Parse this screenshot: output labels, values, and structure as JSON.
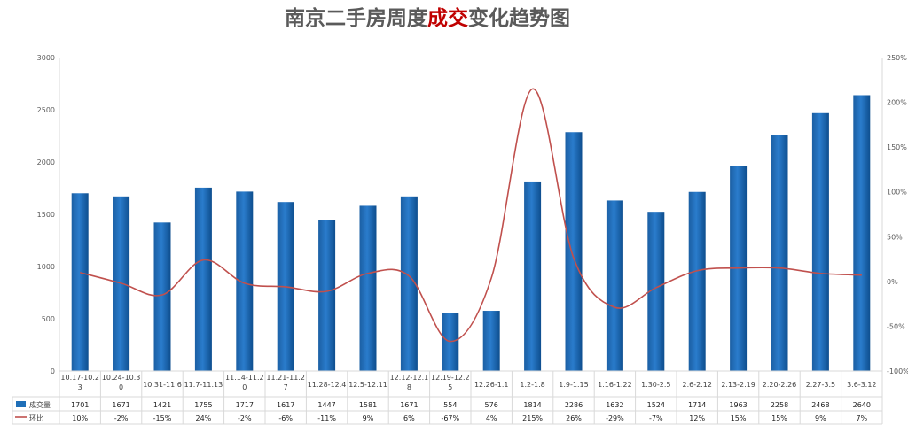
{
  "chart_data": {
    "type": "bar",
    "title_parts": [
      {
        "text": "南京二手房周度",
        "color": "#5a5a5a"
      },
      {
        "text": "成交",
        "color": "#c00000"
      },
      {
        "text": "变化趋势图",
        "color": "#5a5a5a"
      }
    ],
    "categories": [
      "10.17-10.23",
      "10.24-10.30",
      "10.31-11.6",
      "11.7-11.13",
      "11.14-11.20",
      "11.21-11.27",
      "11.28-12.4",
      "12.5-12.11",
      "12.12-12.18",
      "12.19-12.25",
      "12.26-1.1",
      "1.2-1.8",
      "1.9-1.15",
      "1.16-1.22",
      "1.30-2.5",
      "2.6-2.12",
      "2.13-2.19",
      "2.20-2.26",
      "2.27-3.5",
      "3.6-3.12"
    ],
    "category_label_lines": [
      [
        "10.17-10.2",
        "3"
      ],
      [
        "10.24-10.3",
        "0"
      ],
      [
        "10.31-11.6"
      ],
      [
        "11.7-11.13"
      ],
      [
        "11.14-11.2",
        "0"
      ],
      [
        "11.21-11.2",
        "7"
      ],
      [
        "11.28-12.4"
      ],
      [
        "12.5-12.11"
      ],
      [
        "12.12-12.1",
        "8"
      ],
      [
        "12.19-12.2",
        "5"
      ],
      [
        "12.26-1.1"
      ],
      [
        "1.2-1.8"
      ],
      [
        "1.9-1.15"
      ],
      [
        "1.16-1.22"
      ],
      [
        "1.30-2.5"
      ],
      [
        "2.6-2.12"
      ],
      [
        "2.13-2.19"
      ],
      [
        "2.20-2.26"
      ],
      [
        "2.27-3.5"
      ],
      [
        "3.6-3.12"
      ]
    ],
    "series": [
      {
        "name": "成交量",
        "type": "bar",
        "axis": "left",
        "color": "#1f6fb8",
        "values": [
          1701,
          1671,
          1421,
          1755,
          1717,
          1617,
          1447,
          1581,
          1671,
          554,
          576,
          1814,
          2286,
          1632,
          1524,
          1714,
          1963,
          2258,
          2468,
          2640
        ]
      },
      {
        "name": "环比",
        "type": "line",
        "axis": "right",
        "color": "#c0504d",
        "values": [
          10,
          -2,
          -15,
          24,
          -2,
          -6,
          -11,
          9,
          6,
          -67,
          4,
          215,
          26,
          -29,
          -7,
          12,
          15,
          15,
          9,
          7
        ],
        "labels": [
          "10%",
          "-2%",
          "-15%",
          "24%",
          "-2%",
          "-6%",
          "-11%",
          "9%",
          "6%",
          "-67%",
          "4%",
          "215%",
          "26%",
          "-29%",
          "-7%",
          "12%",
          "15%",
          "15%",
          "9%",
          "7%"
        ]
      }
    ],
    "y_left": {
      "ylim": [
        0,
        3000
      ],
      "ticks": [
        0,
        500,
        1000,
        1500,
        2000,
        2500,
        3000
      ]
    },
    "y_right": {
      "ylim": [
        -100,
        250
      ],
      "ticks": [
        -100,
        -50,
        0,
        50,
        100,
        150,
        200,
        250
      ]
    },
    "grid": false,
    "legend": "data-table-below"
  }
}
